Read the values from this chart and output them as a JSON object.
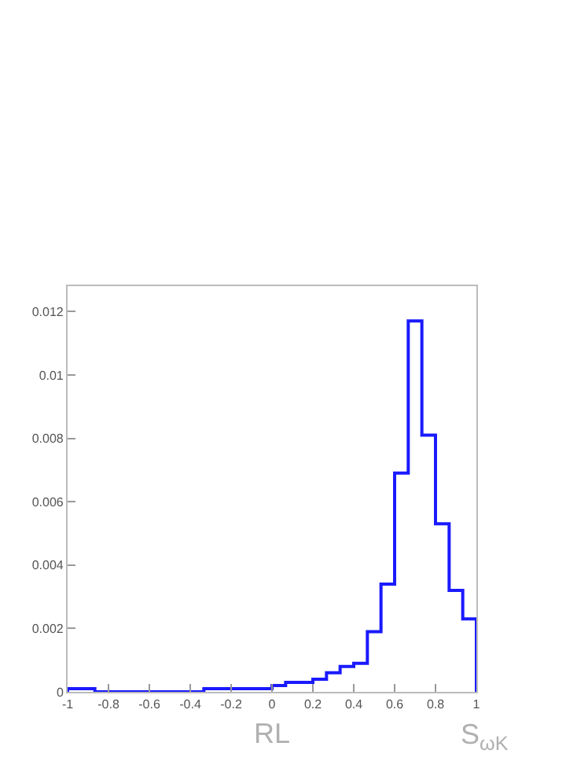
{
  "chart_data": {
    "type": "histogram",
    "xlabel": "RL",
    "annotations": [
      "S$_{ωK}$"
    ],
    "bins": [
      -1,
      -0.9333,
      -0.8667,
      -0.8,
      -0.7333,
      -0.6667,
      -0.6,
      -0.5333,
      -0.4667,
      -0.4,
      -0.3333,
      -0.2667,
      -0.2,
      -0.1333,
      -0.0667,
      0,
      0.0667,
      0.1333,
      0.2,
      0.2667,
      0.3333,
      0.4,
      0.4667,
      0.5333,
      0.6,
      0.6667,
      0.7333,
      0.8,
      0.8667,
      0.9333,
      1
    ],
    "values": [
      0.0001,
      0.0001,
      0,
      0,
      0,
      0,
      0,
      0,
      0,
      0,
      0.0001,
      0.0001,
      0.0001,
      0.0001,
      0.0001,
      0.0002,
      0.0003,
      0.0003,
      0.0004,
      0.0006,
      0.0008,
      0.0009,
      0.0019,
      0.0034,
      0.0069,
      0.0117,
      0.0081,
      0.0053,
      0.0032,
      0.0023
    ],
    "color": "#1a1aff",
    "xlim": [
      -1,
      1
    ],
    "xticks": [
      -1,
      -0.8,
      -0.6,
      -0.4,
      -0.2,
      0,
      0.2,
      0.4,
      0.6,
      0.8,
      1
    ],
    "ylim": [
      0,
      0.0128
    ],
    "yticks": [
      0,
      0.002,
      0.004,
      0.006,
      0.008,
      0.01,
      0.012
    ],
    "grid": false
  }
}
